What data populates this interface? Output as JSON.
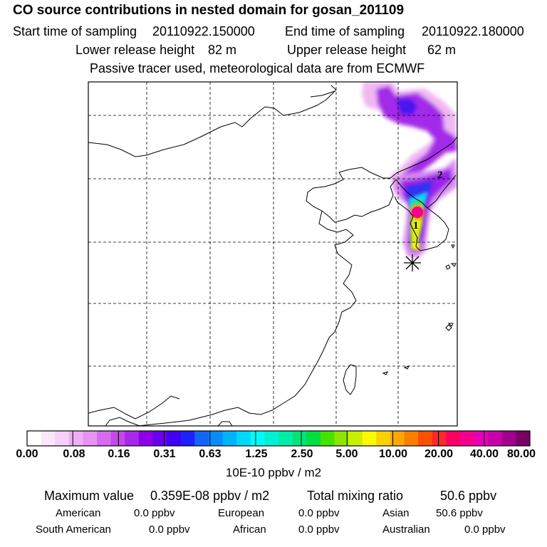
{
  "header": {
    "title": "CO  source contributions in nested domain for gosan_201109",
    "start_label": "Start time of sampling",
    "start_value": "20110922.150000",
    "end_label": "End time of sampling",
    "end_value": "20110922.180000",
    "lower_label": "Lower release height",
    "lower_value": "82 m",
    "upper_label": "Upper release height",
    "upper_value": "62 m",
    "tracer_note": "Passive tracer used, meteorological data are from ECMWF"
  },
  "map": {
    "contour_labels": [
      "1",
      "2"
    ],
    "receptor_marker": "asterisk",
    "colors": {
      "coastline": "#000000",
      "gridline": "#000000"
    }
  },
  "colorbar": {
    "tick_labels": [
      "0.00",
      "0.08",
      "0.16",
      "0.31",
      "0.63",
      "1.25",
      "2.50",
      "5.00",
      "10.00",
      "20.00",
      "40.00",
      "80.00"
    ],
    "unit": "10E-10 ppbv / m2",
    "colors": [
      "#ffffff",
      "#fbe6fb",
      "#f6d0f8",
      "#eeaef4",
      "#e693f1",
      "#d46cec",
      "#c349eb",
      "#a928ea",
      "#8c00e6",
      "#6a00ee",
      "#4200f4",
      "#2020f8",
      "#1464f8",
      "#0a8cf8",
      "#00b4fa",
      "#00d8fa",
      "#00fafa",
      "#00f0d2",
      "#00eaa8",
      "#00e47e",
      "#00de40",
      "#46e200",
      "#8ce600",
      "#c8ee00",
      "#fafa00",
      "#fad200",
      "#faa800",
      "#fa7e00",
      "#fa5000",
      "#fa2a28",
      "#fa0064",
      "#f5008c",
      "#e600b4",
      "#c800aa",
      "#a0008c",
      "#780064"
    ]
  },
  "stats": {
    "max_label": "Maximum value",
    "max_value": "0.359E-08 ppbv / m2",
    "total_label": "Total mixing ratio",
    "total_value": "50.6 ppbv",
    "regions": [
      {
        "name": "American",
        "value": "0.0 ppbv"
      },
      {
        "name": "European",
        "value": "0.0 ppbv"
      },
      {
        "name": "Asian",
        "value": "50.6 ppbv"
      },
      {
        "name": "South American",
        "value": "0.0 ppbv"
      },
      {
        "name": "African",
        "value": "0.0 ppbv"
      },
      {
        "name": "Australian",
        "value": "0.0 ppbv"
      }
    ]
  }
}
